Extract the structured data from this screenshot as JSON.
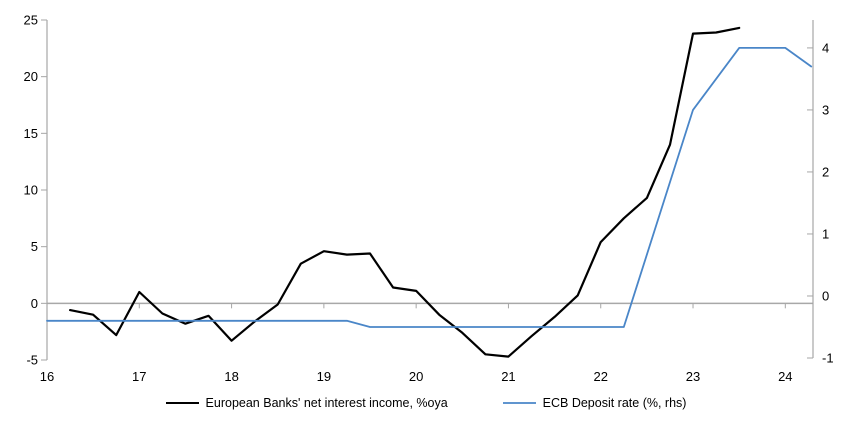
{
  "chart_data": {
    "type": "line",
    "legend_position": "bottom",
    "grid": "zero-line-only",
    "x_axis": {
      "min": 16,
      "max": 24.3,
      "ticks": [
        16,
        17,
        18,
        19,
        20,
        21,
        22,
        23,
        24
      ]
    },
    "left_axis": {
      "min": -5,
      "max": 25,
      "ticks": [
        25,
        20,
        15,
        10,
        5,
        0,
        -5
      ]
    },
    "right_axis": {
      "min": -1,
      "max": 4.45,
      "ticks": [
        4,
        3,
        2,
        1,
        0,
        -1
      ]
    },
    "colors": {
      "axis": "#a6a6a6",
      "zero_line": "#a8a8a8",
      "text": "#000000"
    },
    "series": [
      {
        "name": "European Banks' net interest income, %oya",
        "axis": "left",
        "color": "#000000",
        "stroke_width": 2.2,
        "points": [
          [
            16.25,
            -0.6
          ],
          [
            16.5,
            -1.0
          ],
          [
            16.75,
            -2.8
          ],
          [
            17.0,
            1.0
          ],
          [
            17.25,
            -0.9
          ],
          [
            17.5,
            -1.8
          ],
          [
            17.75,
            -1.1
          ],
          [
            18.0,
            -3.3
          ],
          [
            18.25,
            -1.6
          ],
          [
            18.5,
            -0.1
          ],
          [
            18.75,
            3.5
          ],
          [
            19.0,
            4.6
          ],
          [
            19.25,
            4.3
          ],
          [
            19.5,
            4.4
          ],
          [
            19.75,
            1.4
          ],
          [
            20.0,
            1.1
          ],
          [
            20.25,
            -1.0
          ],
          [
            20.5,
            -2.6
          ],
          [
            20.75,
            -4.5
          ],
          [
            21.0,
            -4.7
          ],
          [
            21.25,
            -2.9
          ],
          [
            21.5,
            -1.2
          ],
          [
            21.75,
            0.7
          ],
          [
            22.0,
            5.4
          ],
          [
            22.25,
            7.5
          ],
          [
            22.5,
            9.3
          ],
          [
            22.75,
            14.0
          ],
          [
            23.0,
            23.8
          ],
          [
            23.25,
            23.9
          ],
          [
            23.5,
            24.3
          ]
        ]
      },
      {
        "name": "ECB Deposit rate (%, rhs)",
        "axis": "right",
        "color": "#4a86c8",
        "stroke_width": 1.8,
        "points": [
          [
            16.0,
            -0.4
          ],
          [
            19.25,
            -0.4
          ],
          [
            19.5,
            -0.5
          ],
          [
            22.25,
            -0.5
          ],
          [
            23.0,
            3.0
          ],
          [
            23.5,
            4.0
          ],
          [
            24.0,
            4.0
          ],
          [
            24.28,
            3.7
          ]
        ]
      }
    ]
  }
}
